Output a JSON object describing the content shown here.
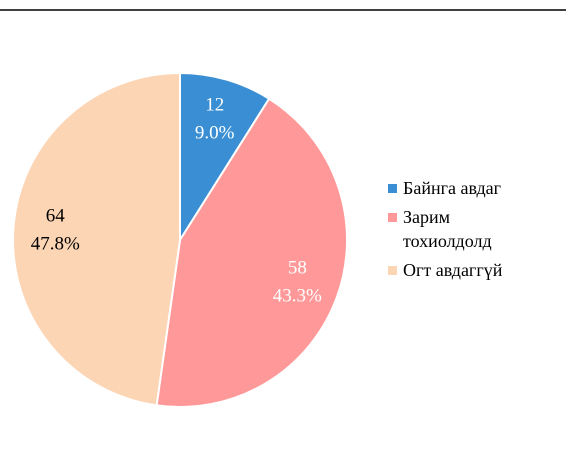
{
  "chart_data": {
    "type": "pie",
    "categories": [
      "Байнга авдаг",
      "Зарим тохиолдолд",
      "Огт авдаггүй"
    ],
    "values": [
      12,
      58,
      64
    ],
    "percentages": [
      9.0,
      43.3,
      47.8
    ],
    "percentage_labels": [
      "9.0%",
      "43.3%",
      "47.8%"
    ],
    "colors": [
      "#3a8fd4",
      "#ff9999",
      "#fcd5b5"
    ],
    "label_colors": [
      "#ffffff",
      "#ffffff",
      "#000000"
    ]
  }
}
